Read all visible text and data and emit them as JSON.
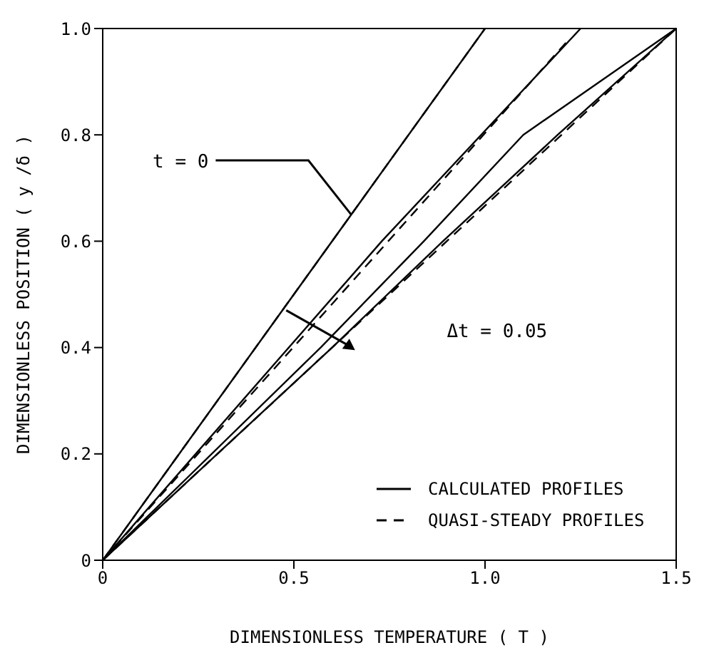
{
  "chart_data": {
    "type": "line",
    "xlabel": "DIMENSIONLESS TEMPERATURE ( T )",
    "ylabel": "DIMENSIONLESS POSITION ( y /δ )",
    "xlim": [
      0,
      1.5
    ],
    "ylim": [
      0,
      1
    ],
    "xticks": [
      0,
      0.5,
      {
        "value": 1,
        "label": "1.0"
      },
      1.5
    ],
    "yticks": [
      0,
      0.2,
      0.4,
      0.6,
      0.8,
      {
        "value": 1,
        "label": "1.0"
      }
    ],
    "legend": "bottom right",
    "marker": "none",
    "series": [
      {
        "name": "CALCULATED PROFILES",
        "color": "#000000",
        "line_style": "solid",
        "x": [
          0,
          0.5,
          1.0
        ],
        "values": [
          0,
          0.5,
          1.0
        ]
      },
      {
        "name": "QUASI-STEADY PROFILES",
        "color": "#000000",
        "line_style": "dashed",
        "x": [
          0,
          0.5,
          1.0
        ],
        "values": [
          0,
          0.5,
          1.0
        ]
      },
      {
        "color": "#000000",
        "line_style": "solid",
        "x": [
          0,
          0.73,
          1.25
        ],
        "values": [
          0,
          0.6,
          1.0
        ]
      },
      {
        "color": "#000000",
        "line_style": "dashed",
        "x": [
          0,
          0.61,
          1.22
        ],
        "values": [
          0,
          0.49,
          0.98
        ]
      },
      {
        "color": "#000000",
        "line_style": "solid",
        "x": [
          0,
          0.57,
          0.84,
          1.1,
          1.5
        ],
        "values": [
          0,
          0.4,
          0.6,
          0.8,
          1.0
        ]
      },
      {
        "color": "#000000",
        "line_style": "solid",
        "x": [
          0,
          0.6,
          0.89,
          1.19,
          1.5
        ],
        "values": [
          0,
          0.4,
          0.6,
          0.8,
          1.0
        ]
      },
      {
        "color": "#000000",
        "line_style": "dashed",
        "x": [
          0,
          0.75,
          1.5
        ],
        "values": [
          0,
          0.5,
          1.0
        ]
      }
    ],
    "annotations": [
      {
        "text": "t = 0",
        "x": 0.65,
        "y": 0.65
      },
      "Δt = 0.05"
    ]
  }
}
